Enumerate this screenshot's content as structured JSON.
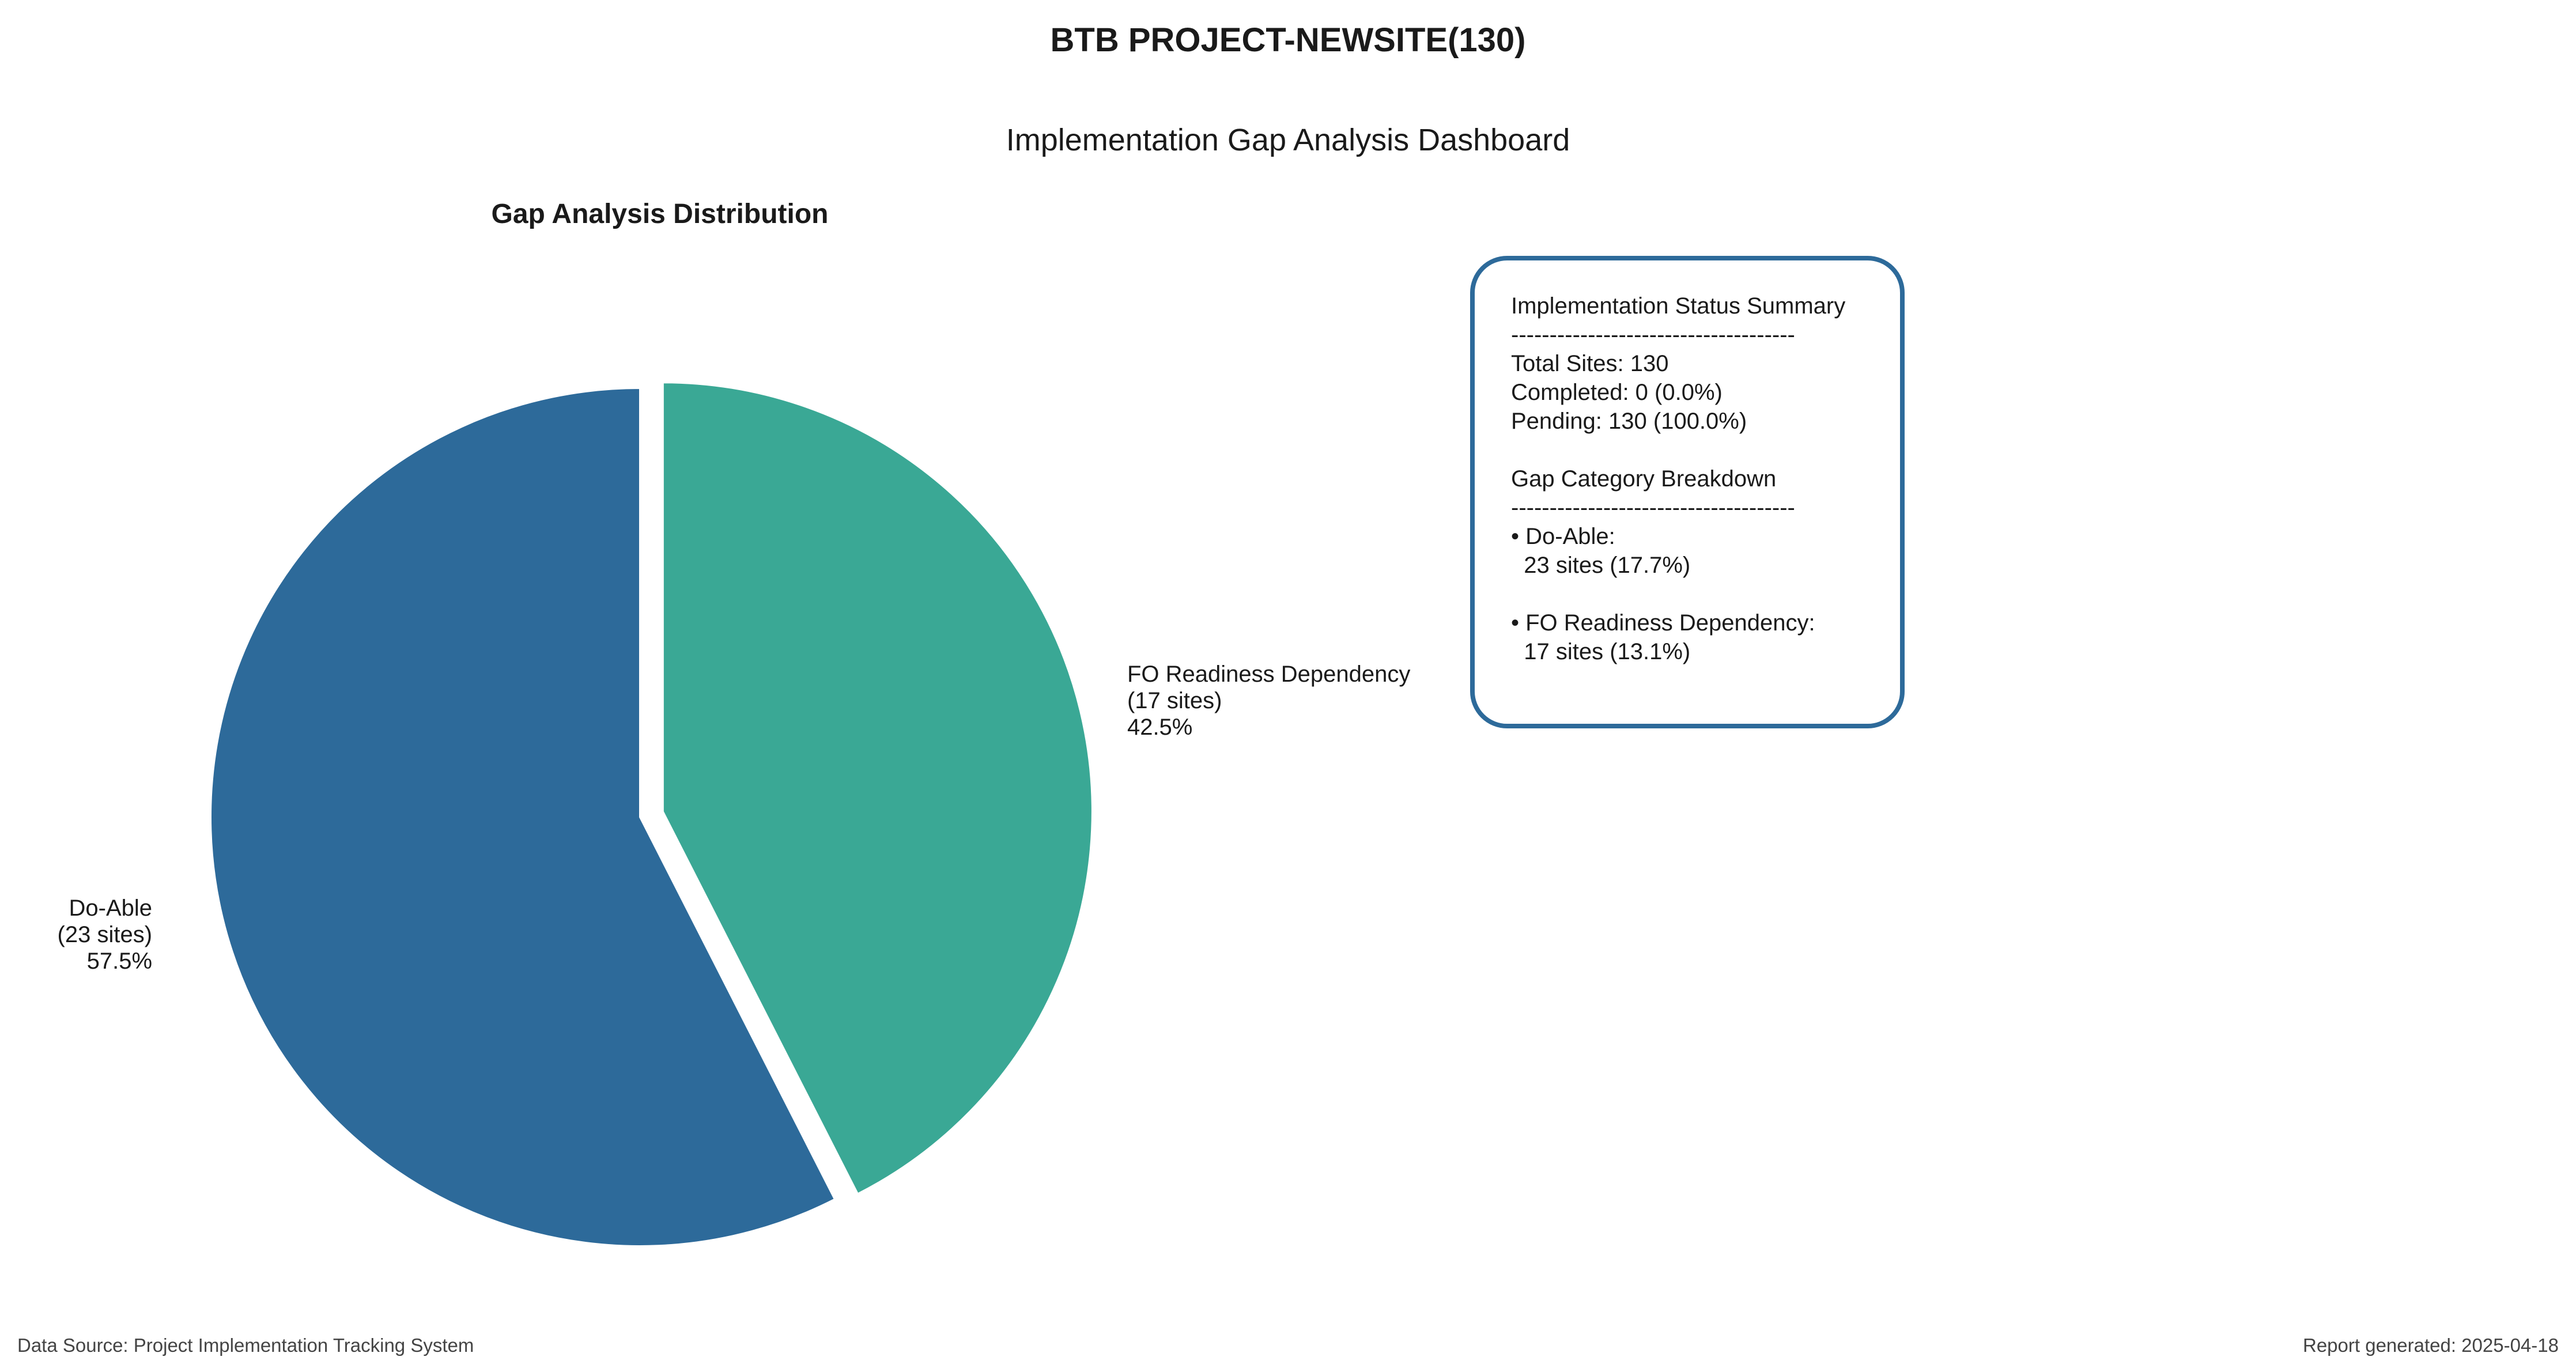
{
  "header": {
    "title": "BTB PROJECT-NEWSITE(130)",
    "subtitle": "Implementation Gap Analysis Dashboard"
  },
  "chart_data": {
    "type": "pie",
    "title": "Gap Analysis Distribution",
    "start_angle_deg": 90,
    "direction": "clockwise",
    "colors": [
      "#3aa895",
      "#2d6a9a"
    ],
    "slices": [
      {
        "name": "FO Readiness Dependency",
        "count_label": "(17 sites)",
        "percent_label": "42.5%",
        "value": 17,
        "exploded": true
      },
      {
        "name": "Do-Able",
        "count_label": "(23 sites)",
        "percent_label": "57.5%",
        "value": 23,
        "exploded": false
      }
    ]
  },
  "summary": {
    "heading": "Implementation Status Summary",
    "divider": "-------------------------------------",
    "total": "Total Sites: 130",
    "completed": "Completed: 0 (0.0%)",
    "pending": "Pending: 130 (100.0%)",
    "breakdown_heading": "Gap Category Breakdown",
    "items": [
      {
        "label": "• Do-Able:",
        "value": "  23 sites (17.7%)"
      },
      {
        "label": "• FO Readiness Dependency:",
        "value": "  17 sites (13.1%)"
      }
    ]
  },
  "footer": {
    "source": "Data Source: Project Implementation Tracking System",
    "generated": "Report generated: 2025-04-18"
  }
}
